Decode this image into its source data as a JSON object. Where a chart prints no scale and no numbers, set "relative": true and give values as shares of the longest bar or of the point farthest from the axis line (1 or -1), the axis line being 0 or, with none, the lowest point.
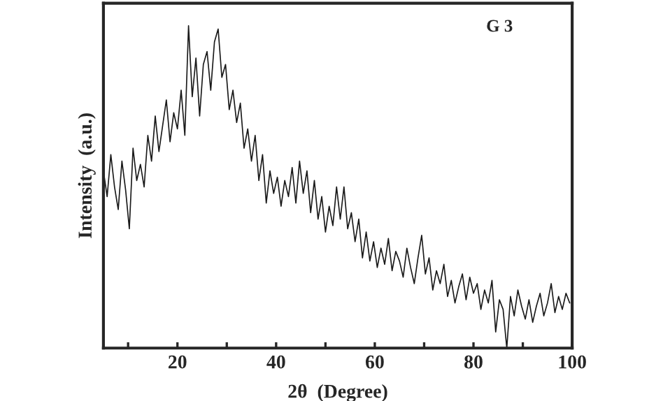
{
  "chart_data": {
    "type": "line",
    "relative": true,
    "xlabel": "2θ  (Degree)",
    "ylabel": "Intensity  (a.u.)",
    "annotations": [
      "G 3"
    ],
    "color": "#1a1a1a",
    "xlim": [
      5,
      100
    ],
    "xticks": [
      {
        "value": 10,
        "label": null
      },
      20,
      {
        "value": 30,
        "label": null
      },
      40,
      {
        "value": 50,
        "label": null
      },
      60,
      {
        "value": 70,
        "label": null
      },
      80,
      {
        "value": 90,
        "label": null
      },
      100
    ],
    "x": [
      5,
      5.75,
      6.5,
      7.25,
      8,
      8.75,
      9.5,
      10.25,
      11,
      11.75,
      12.5,
      13.25,
      14,
      14.75,
      15.5,
      16.25,
      17,
      17.75,
      18.5,
      19.25,
      20,
      20.75,
      21.5,
      22.25,
      23,
      23.75,
      24.5,
      25.25,
      26,
      26.75,
      27.5,
      28.25,
      29,
      29.75,
      30.5,
      31.25,
      32,
      32.75,
      33.5,
      34.25,
      35,
      35.75,
      36.5,
      37.25,
      38,
      38.75,
      39.5,
      40.25,
      41,
      41.75,
      42.5,
      43.25,
      44,
      44.75,
      45.5,
      46.25,
      47,
      47.75,
      48.5,
      49.25,
      50,
      50.75,
      51.5,
      52.25,
      53,
      53.75,
      54.5,
      55.25,
      56,
      56.75,
      57.5,
      58.25,
      59,
      59.75,
      60.5,
      61.25,
      62,
      62.75,
      63.5,
      64.25,
      65,
      65.75,
      66.5,
      67.25,
      68,
      68.75,
      69.5,
      70.25,
      71,
      71.75,
      72.5,
      73.25,
      74,
      74.75,
      75.5,
      76.25,
      77,
      77.75,
      78.5,
      79.25,
      80,
      80.75,
      81.5,
      82.25,
      83,
      83.75,
      84.5,
      85.25,
      86,
      86.75,
      87.5,
      88.25,
      89,
      89.75,
      90.5,
      91.25,
      92,
      92.75,
      93.5,
      94.25,
      95,
      95.75,
      96.5,
      97.25,
      98,
      98.75,
      99.5
    ],
    "values": [
      0.55,
      0.47,
      0.6,
      0.5,
      0.43,
      0.58,
      0.49,
      0.37,
      0.62,
      0.52,
      0.57,
      0.5,
      0.66,
      0.58,
      0.72,
      0.61,
      0.69,
      0.77,
      0.64,
      0.73,
      0.68,
      0.8,
      0.66,
      1.0,
      0.78,
      0.9,
      0.72,
      0.88,
      0.92,
      0.8,
      0.95,
      0.99,
      0.84,
      0.88,
      0.74,
      0.8,
      0.7,
      0.76,
      0.62,
      0.68,
      0.58,
      0.66,
      0.52,
      0.6,
      0.45,
      0.55,
      0.48,
      0.53,
      0.44,
      0.52,
      0.47,
      0.56,
      0.45,
      0.58,
      0.48,
      0.55,
      0.42,
      0.52,
      0.4,
      0.47,
      0.36,
      0.44,
      0.38,
      0.5,
      0.4,
      0.5,
      0.37,
      0.42,
      0.33,
      0.4,
      0.28,
      0.36,
      0.27,
      0.33,
      0.25,
      0.31,
      0.26,
      0.34,
      0.24,
      0.3,
      0.27,
      0.22,
      0.31,
      0.25,
      0.2,
      0.28,
      0.35,
      0.23,
      0.28,
      0.18,
      0.24,
      0.2,
      0.26,
      0.16,
      0.21,
      0.14,
      0.19,
      0.23,
      0.15,
      0.22,
      0.17,
      0.2,
      0.12,
      0.18,
      0.14,
      0.21,
      0.05,
      0.15,
      0.12,
      0.0,
      0.16,
      0.1,
      0.18,
      0.13,
      0.09,
      0.15,
      0.08,
      0.13,
      0.17,
      0.1,
      0.14,
      0.2,
      0.11,
      0.16,
      0.12,
      0.17,
      0.14
    ]
  }
}
